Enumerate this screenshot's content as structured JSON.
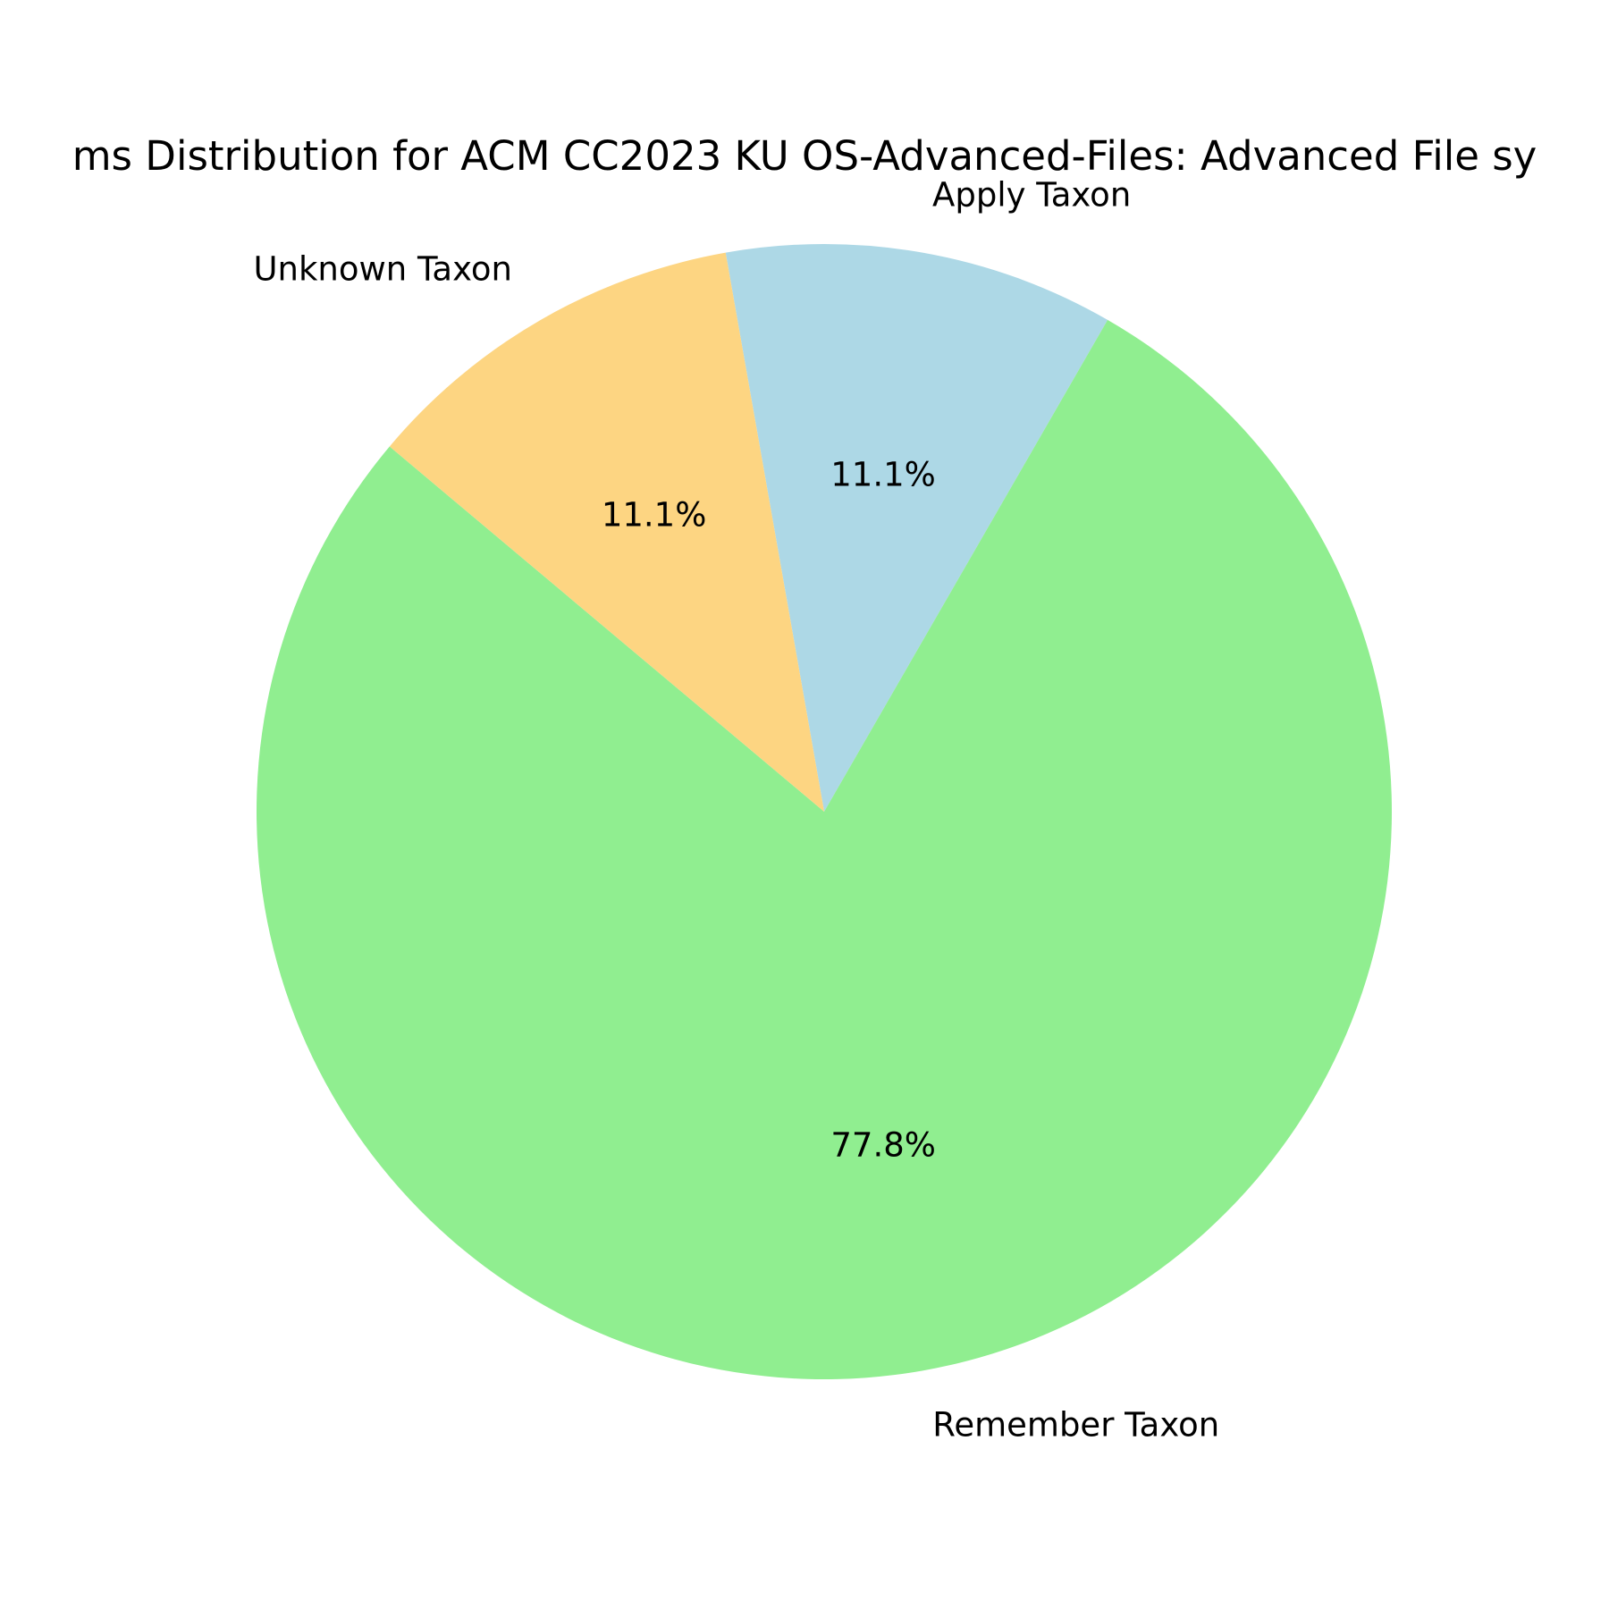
{
  "chart_data": {
    "type": "pie",
    "title": "ms Distribution for ACM CC2023 KU OS-Advanced-Files: Advanced File sy",
    "labels": [
      "Apply Taxon",
      "Remember Taxon",
      "Unknown Taxon"
    ],
    "values": [
      11.1,
      77.8,
      11.1
    ],
    "percent_labels": [
      "11.1%",
      "77.8%",
      "11.1%"
    ],
    "colors": [
      "#add8e6",
      "#90ee90",
      "#fdd582"
    ],
    "start_angle_deg": 100,
    "direction": "clockwise",
    "legend": "none"
  }
}
